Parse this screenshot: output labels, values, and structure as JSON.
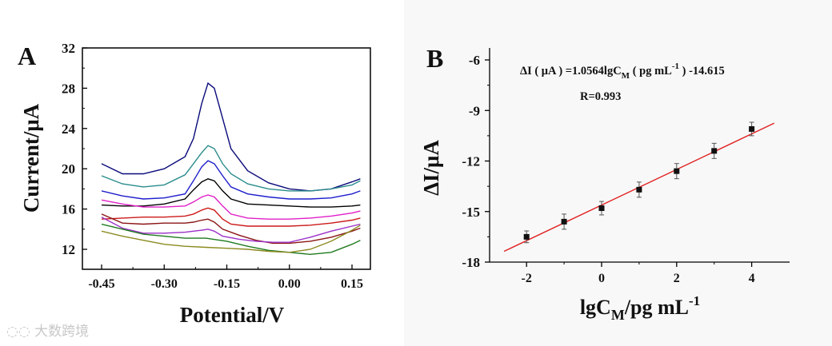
{
  "panel_labels": {
    "a": "A",
    "b": "B"
  },
  "watermark": "大数跨境",
  "chart_data": [
    {
      "type": "line",
      "panel": "A",
      "xlabel": "Potential/V",
      "ylabel": "Current/μA",
      "xlim": [
        -0.48,
        0.18
      ],
      "ylim": [
        10,
        32
      ],
      "xticks": [
        "-0.45",
        "-0.30",
        "-0.15",
        "0.00",
        "0.15"
      ],
      "xtick_values": [
        -0.45,
        -0.3,
        -0.15,
        0.0,
        0.15
      ],
      "yticks": [
        "12",
        "16",
        "20",
        "24",
        "28",
        "32"
      ],
      "ytick_values": [
        12,
        16,
        20,
        24,
        28,
        32
      ],
      "grid": false,
      "series": [
        {
          "name": "curve-navy",
          "color": "#0a0a7a",
          "points": [
            [
              -0.45,
              20.5
            ],
            [
              -0.4,
              19.5
            ],
            [
              -0.35,
              19.5
            ],
            [
              -0.3,
              20.0
            ],
            [
              -0.25,
              21.2
            ],
            [
              -0.23,
              23.0
            ],
            [
              -0.21,
              26.5
            ],
            [
              -0.195,
              28.5
            ],
            [
              -0.18,
              28.0
            ],
            [
              -0.16,
              25.0
            ],
            [
              -0.14,
              22.0
            ],
            [
              -0.1,
              19.8
            ],
            [
              -0.05,
              18.6
            ],
            [
              0.0,
              18.0
            ],
            [
              0.05,
              17.8
            ],
            [
              0.1,
              18.0
            ],
            [
              0.15,
              18.7
            ],
            [
              0.17,
              19.0
            ]
          ]
        },
        {
          "name": "curve-teal",
          "color": "#2b8c8c",
          "points": [
            [
              -0.45,
              19.3
            ],
            [
              -0.4,
              18.5
            ],
            [
              -0.35,
              18.2
            ],
            [
              -0.3,
              18.4
            ],
            [
              -0.25,
              19.4
            ],
            [
              -0.23,
              20.5
            ],
            [
              -0.21,
              21.6
            ],
            [
              -0.195,
              22.3
            ],
            [
              -0.18,
              22.0
            ],
            [
              -0.16,
              20.5
            ],
            [
              -0.14,
              19.5
            ],
            [
              -0.1,
              18.5
            ],
            [
              -0.05,
              18.0
            ],
            [
              0.0,
              17.8
            ],
            [
              0.05,
              17.8
            ],
            [
              0.1,
              18.0
            ],
            [
              0.15,
              18.4
            ],
            [
              0.17,
              18.8
            ]
          ]
        },
        {
          "name": "curve-blue",
          "color": "#1d1dcc",
          "points": [
            [
              -0.45,
              17.8
            ],
            [
              -0.4,
              17.3
            ],
            [
              -0.35,
              17.0
            ],
            [
              -0.3,
              17.1
            ],
            [
              -0.25,
              17.5
            ],
            [
              -0.23,
              18.8
            ],
            [
              -0.21,
              20.2
            ],
            [
              -0.195,
              20.8
            ],
            [
              -0.18,
              20.5
            ],
            [
              -0.16,
              19.3
            ],
            [
              -0.14,
              18.2
            ],
            [
              -0.1,
              17.5
            ],
            [
              -0.05,
              17.2
            ],
            [
              0.0,
              17.0
            ],
            [
              0.05,
              17.0
            ],
            [
              0.1,
              17.1
            ],
            [
              0.15,
              17.5
            ],
            [
              0.17,
              17.8
            ]
          ]
        },
        {
          "name": "curve-black",
          "color": "#000000",
          "points": [
            [
              -0.45,
              16.4
            ],
            [
              -0.4,
              16.3
            ],
            [
              -0.35,
              16.3
            ],
            [
              -0.3,
              16.5
            ],
            [
              -0.25,
              17.0
            ],
            [
              -0.23,
              17.9
            ],
            [
              -0.21,
              18.7
            ],
            [
              -0.195,
              19.0
            ],
            [
              -0.18,
              18.8
            ],
            [
              -0.16,
              17.8
            ],
            [
              -0.14,
              17.0
            ],
            [
              -0.1,
              16.5
            ],
            [
              -0.05,
              16.4
            ],
            [
              0.0,
              16.3
            ],
            [
              0.05,
              16.2
            ],
            [
              0.1,
              16.2
            ],
            [
              0.15,
              16.3
            ],
            [
              0.17,
              16.4
            ]
          ]
        },
        {
          "name": "curve-magenta",
          "color": "#e020c8",
          "points": [
            [
              -0.45,
              16.9
            ],
            [
              -0.4,
              16.5
            ],
            [
              -0.35,
              16.2
            ],
            [
              -0.3,
              16.2
            ],
            [
              -0.25,
              16.3
            ],
            [
              -0.23,
              16.7
            ],
            [
              -0.21,
              17.2
            ],
            [
              -0.195,
              17.4
            ],
            [
              -0.18,
              17.2
            ],
            [
              -0.16,
              16.3
            ],
            [
              -0.14,
              15.5
            ],
            [
              -0.1,
              15.1
            ],
            [
              -0.05,
              15.0
            ],
            [
              0.0,
              15.0
            ],
            [
              0.05,
              15.1
            ],
            [
              0.1,
              15.3
            ],
            [
              0.15,
              15.6
            ],
            [
              0.17,
              15.8
            ]
          ]
        },
        {
          "name": "curve-red",
          "color": "#cc1a1a",
          "points": [
            [
              -0.45,
              15.0
            ],
            [
              -0.4,
              15.1
            ],
            [
              -0.35,
              15.2
            ],
            [
              -0.3,
              15.2
            ],
            [
              -0.25,
              15.3
            ],
            [
              -0.23,
              15.5
            ],
            [
              -0.21,
              15.9
            ],
            [
              -0.195,
              16.1
            ],
            [
              -0.18,
              15.9
            ],
            [
              -0.16,
              15.0
            ],
            [
              -0.14,
              14.5
            ],
            [
              -0.1,
              14.3
            ],
            [
              -0.05,
              14.3
            ],
            [
              0.0,
              14.3
            ],
            [
              0.05,
              14.4
            ],
            [
              0.1,
              14.6
            ],
            [
              0.15,
              14.9
            ],
            [
              0.17,
              15.1
            ]
          ]
        },
        {
          "name": "curve-dark-red",
          "color": "#8b1515",
          "points": [
            [
              -0.45,
              15.5
            ],
            [
              -0.4,
              14.6
            ],
            [
              -0.35,
              14.5
            ],
            [
              -0.3,
              14.6
            ],
            [
              -0.25,
              14.6
            ],
            [
              -0.23,
              14.7
            ],
            [
              -0.21,
              14.9
            ],
            [
              -0.195,
              15.0
            ],
            [
              -0.18,
              14.7
            ],
            [
              -0.16,
              14.0
            ],
            [
              -0.12,
              13.4
            ],
            [
              -0.08,
              12.9
            ],
            [
              -0.04,
              12.6
            ],
            [
              0.0,
              12.6
            ],
            [
              0.05,
              12.8
            ],
            [
              0.1,
              13.2
            ],
            [
              0.15,
              13.8
            ],
            [
              0.17,
              14.1
            ]
          ]
        },
        {
          "name": "curve-purple",
          "color": "#9b2fc8",
          "points": [
            [
              -0.45,
              15.2
            ],
            [
              -0.4,
              14.1
            ],
            [
              -0.35,
              13.6
            ],
            [
              -0.3,
              13.6
            ],
            [
              -0.25,
              13.7
            ],
            [
              -0.23,
              13.8
            ],
            [
              -0.21,
              13.9
            ],
            [
              -0.195,
              14.0
            ],
            [
              -0.18,
              13.8
            ],
            [
              -0.16,
              13.3
            ],
            [
              -0.12,
              13.0
            ],
            [
              -0.08,
              12.8
            ],
            [
              -0.04,
              12.7
            ],
            [
              0.0,
              12.7
            ],
            [
              0.05,
              13.2
            ],
            [
              0.1,
              13.8
            ],
            [
              0.15,
              14.3
            ],
            [
              0.17,
              14.5
            ]
          ]
        },
        {
          "name": "curve-green",
          "color": "#1f7a1f",
          "points": [
            [
              -0.45,
              14.5
            ],
            [
              -0.4,
              14.0
            ],
            [
              -0.35,
              13.5
            ],
            [
              -0.3,
              13.3
            ],
            [
              -0.25,
              13.1
            ],
            [
              -0.2,
              13.1
            ],
            [
              -0.15,
              12.8
            ],
            [
              -0.1,
              12.3
            ],
            [
              -0.05,
              11.9
            ],
            [
              0.0,
              11.7
            ],
            [
              0.05,
              11.5
            ],
            [
              0.1,
              11.7
            ],
            [
              0.15,
              12.5
            ],
            [
              0.17,
              12.9
            ]
          ]
        },
        {
          "name": "curve-olive",
          "color": "#8a8a20",
          "points": [
            [
              -0.45,
              13.8
            ],
            [
              -0.4,
              13.3
            ],
            [
              -0.35,
              12.9
            ],
            [
              -0.3,
              12.5
            ],
            [
              -0.25,
              12.3
            ],
            [
              -0.2,
              12.2
            ],
            [
              -0.15,
              12.1
            ],
            [
              -0.1,
              12.0
            ],
            [
              -0.05,
              11.8
            ],
            [
              0.0,
              11.7
            ],
            [
              0.05,
              12.0
            ],
            [
              0.1,
              12.8
            ],
            [
              0.15,
              13.9
            ],
            [
              0.17,
              14.4
            ]
          ]
        }
      ]
    },
    {
      "type": "scatter",
      "panel": "B",
      "xlabel_main": "lgC",
      "xlabel_sub": "M",
      "xlabel_rest": "/pg mL",
      "xlabel_sup": "-1",
      "ylabel": "ΔI/μA",
      "xlim": [
        -2.7,
        4.7
      ],
      "ylim": [
        -18,
        -5.5
      ],
      "xticks": [
        "-2",
        "0",
        "2",
        "4"
      ],
      "xtick_values": [
        -2,
        0,
        2,
        4
      ],
      "yticks": [
        "-6",
        "-9",
        "-12",
        "-15",
        "-18"
      ],
      "ytick_values": [
        -6,
        -9,
        -12,
        -15,
        -18
      ],
      "grid": false,
      "points": [
        {
          "x": -2,
          "y": -16.5,
          "err": 0.35
        },
        {
          "x": -1,
          "y": -15.6,
          "err": 0.45
        },
        {
          "x": 0,
          "y": -14.8,
          "err": 0.4
        },
        {
          "x": 1,
          "y": -13.7,
          "err": 0.45
        },
        {
          "x": 2,
          "y": -12.6,
          "err": 0.45
        },
        {
          "x": 3,
          "y": -11.4,
          "err": 0.45
        },
        {
          "x": 4,
          "y": -10.1,
          "err": 0.4
        }
      ],
      "fit": {
        "slope": 1.0564,
        "intercept": -14.615,
        "x_range": [
          -2.6,
          4.6
        ],
        "color": "#e02020"
      },
      "equation": {
        "part1": "ΔI ( μA ) =1.0564lgC",
        "sub": "M",
        "part2": " ( pg mL",
        "sup": "-1",
        "part3": " ) -14.615"
      },
      "r_value": "R=0.993"
    }
  ]
}
